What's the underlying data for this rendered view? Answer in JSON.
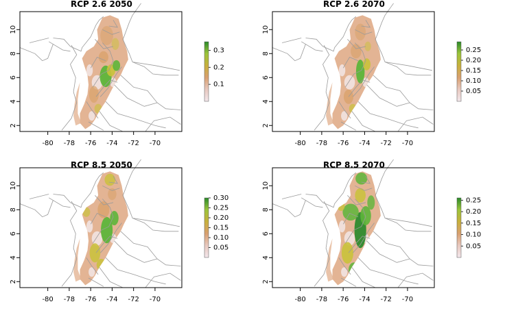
{
  "figure": {
    "x_ticks": [
      "-80",
      "-78",
      "-76",
      "-74",
      "-72",
      "-70"
    ],
    "y_ticks": [
      "2",
      "4",
      "6",
      "8",
      "10"
    ],
    "colors": {
      "background": "#ffffff",
      "land_low": "#f2e6e6",
      "land_mid": "#e3b494",
      "land_orange": "#d9a26a",
      "land_yellow": "#c9c23a",
      "land_green": "#5db53a",
      "land_dark_green": "#2e8b2e",
      "borders": "#9a9a9a",
      "frame": "#000000"
    }
  },
  "panels": [
    {
      "title": "RCP 2.6 2050",
      "legend_ticks": [
        "0.3",
        "0.2",
        "0.1"
      ],
      "legend_max": 0.35,
      "legend_tick_values": [
        0.3,
        0.2,
        0.1
      ]
    },
    {
      "title": "RCP 2.6 2070",
      "legend_ticks": [
        "0.25",
        "0.20",
        "0.15",
        "0.10",
        "0.05"
      ],
      "legend_max": 0.29,
      "legend_tick_values": [
        0.25,
        0.2,
        0.15,
        0.1,
        0.05
      ]
    },
    {
      "title": "RCP 8.5 2050",
      "legend_ticks": [
        "0.30",
        "0.25",
        "0.20",
        "0.15",
        "0.10",
        "0.05"
      ],
      "legend_max": 0.3,
      "legend_tick_values": [
        0.3,
        0.25,
        0.2,
        0.15,
        0.1,
        0.05
      ]
    },
    {
      "title": "RCP 8.5 2070",
      "legend_ticks": [
        "0.25",
        "0.20",
        "0.15",
        "0.10",
        "0.05"
      ],
      "legend_max": 0.26,
      "legend_tick_values": [
        0.25,
        0.2,
        0.15,
        0.1,
        0.05
      ]
    }
  ]
}
